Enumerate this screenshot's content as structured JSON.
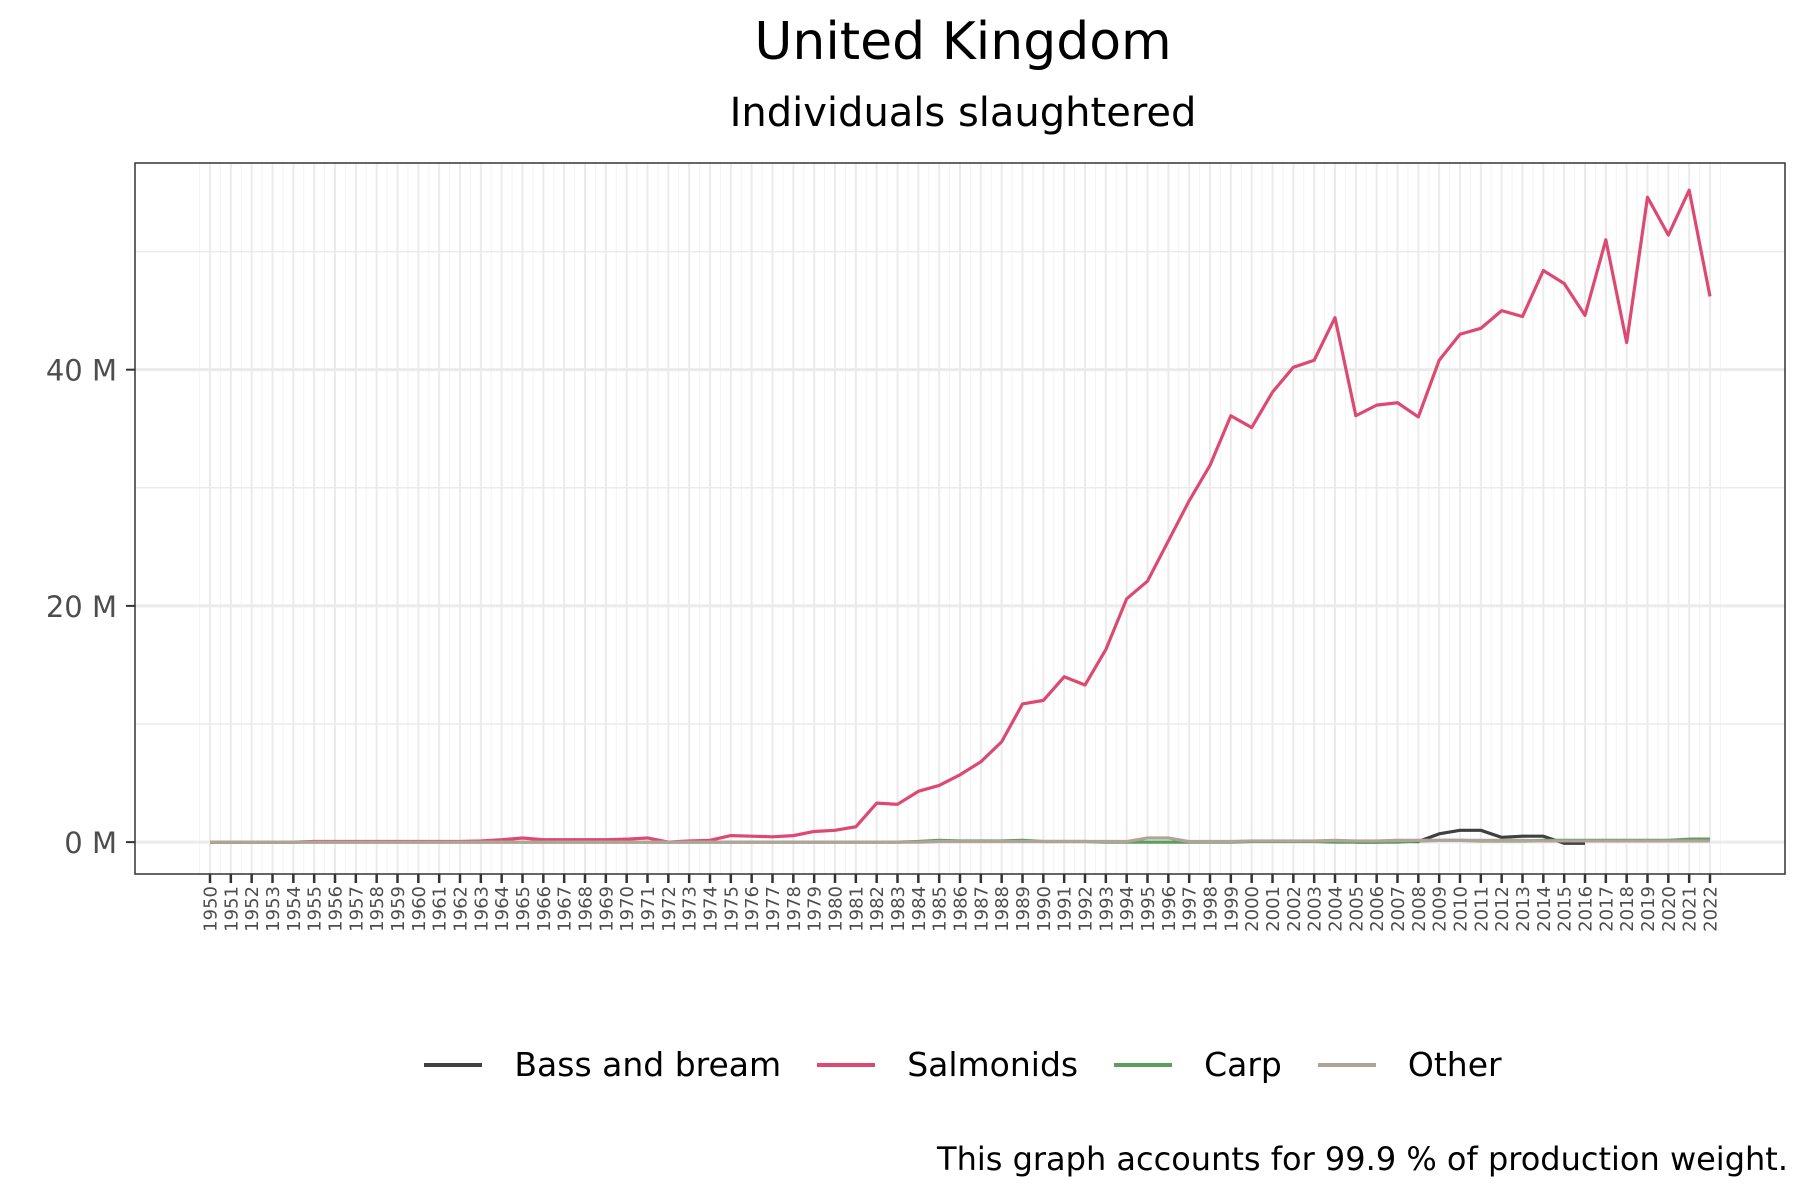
{
  "chart_data": {
    "type": "line",
    "title": "United Kingdom",
    "subtitle": "Individuals slaughtered",
    "caption": "This graph accounts for 99.9 % of production weight.",
    "xlabel": "",
    "ylabel": "",
    "ylim": [
      -2.7,
      57.5
    ],
    "y_ticks": [
      0,
      20,
      40
    ],
    "y_tick_labels": [
      "0 M",
      "20 M",
      "40 M"
    ],
    "grid": true,
    "legend_position": "bottom",
    "x": [
      1950,
      1951,
      1952,
      1953,
      1954,
      1955,
      1956,
      1957,
      1958,
      1959,
      1960,
      1961,
      1962,
      1963,
      1964,
      1965,
      1966,
      1967,
      1968,
      1969,
      1970,
      1971,
      1972,
      1973,
      1974,
      1975,
      1976,
      1977,
      1978,
      1979,
      1980,
      1981,
      1982,
      1983,
      1984,
      1985,
      1986,
      1987,
      1988,
      1989,
      1990,
      1991,
      1992,
      1993,
      1994,
      1995,
      1996,
      1997,
      1998,
      1999,
      2000,
      2001,
      2002,
      2003,
      2004,
      2005,
      2006,
      2007,
      2008,
      2009,
      2010,
      2011,
      2012,
      2013,
      2014,
      2015,
      2016,
      2017,
      2018,
      2019,
      2020,
      2021,
      2022
    ],
    "series": [
      {
        "name": "Bass and bream",
        "color": "#404040",
        "values": [
          null,
          null,
          null,
          null,
          null,
          null,
          null,
          null,
          null,
          null,
          null,
          null,
          null,
          null,
          null,
          null,
          null,
          null,
          null,
          null,
          null,
          null,
          null,
          null,
          null,
          null,
          null,
          null,
          null,
          null,
          null,
          null,
          null,
          null,
          null,
          null,
          null,
          null,
          null,
          null,
          null,
          null,
          null,
          null,
          null,
          null,
          null,
          null,
          null,
          null,
          null,
          null,
          null,
          null,
          null,
          0.0,
          0.0,
          0.05,
          0.05,
          0.7,
          1.0,
          1.0,
          0.4,
          0.5,
          0.5,
          -0.1,
          -0.1,
          null,
          null,
          null,
          null,
          null,
          null
        ]
      },
      {
        "name": "Salmonids",
        "color": "#DC4A72",
        "values": [
          0.0,
          0.0,
          0.0,
          0.0,
          0.0,
          0.05,
          0.05,
          0.05,
          0.05,
          0.05,
          0.05,
          0.05,
          0.05,
          0.1,
          0.2,
          0.35,
          0.2,
          0.2,
          0.2,
          0.2,
          0.25,
          0.35,
          0.0,
          0.1,
          0.15,
          0.55,
          0.5,
          0.45,
          0.55,
          0.9,
          1.0,
          1.3,
          3.3,
          3.2,
          4.3,
          4.8,
          5.7,
          6.8,
          8.5,
          11.7,
          12.0,
          14.0,
          13.3,
          16.3,
          20.6,
          22.1,
          25.5,
          28.9,
          31.9,
          36.1,
          35.1,
          38.1,
          40.2,
          40.8,
          44.4,
          36.1,
          37.0,
          37.2,
          36.0,
          40.8,
          43.0,
          43.5,
          45.0,
          44.5,
          48.4,
          47.3,
          44.6,
          51.0,
          42.3,
          54.6,
          51.4,
          55.2,
          46.2
        ]
      },
      {
        "name": "Carp",
        "color": "#5C9E5C",
        "values": [
          0.0,
          0.0,
          0.0,
          0.0,
          0.0,
          0.0,
          0.0,
          0.0,
          0.0,
          0.0,
          0.0,
          0.0,
          0.0,
          0.0,
          0.0,
          0.0,
          0.0,
          0.0,
          0.0,
          0.0,
          0.0,
          0.0,
          0.0,
          0.0,
          0.0,
          0.0,
          0.0,
          0.0,
          0.0,
          0.0,
          0.0,
          0.0,
          0.0,
          0.0,
          0.05,
          0.15,
          0.1,
          0.1,
          0.1,
          0.15,
          0.05,
          0.05,
          0.05,
          0.0,
          0.0,
          0.0,
          0.0,
          0.0,
          0.0,
          0.0,
          0.05,
          0.05,
          0.05,
          0.05,
          0.0,
          0.0,
          0.0,
          0.0,
          0.1,
          0.15,
          0.15,
          0.1,
          0.1,
          0.1,
          0.15,
          0.15,
          0.15,
          0.15,
          0.15,
          0.15,
          0.15,
          0.25,
          0.25
        ]
      },
      {
        "name": "Other",
        "color": "#B0A397",
        "values": [
          0.0,
          0.0,
          0.0,
          0.0,
          0.0,
          0.0,
          0.0,
          0.0,
          0.0,
          0.0,
          0.0,
          0.0,
          0.0,
          0.0,
          0.0,
          0.0,
          0.0,
          0.0,
          0.0,
          0.0,
          0.0,
          0.0,
          0.0,
          0.0,
          0.0,
          0.0,
          0.0,
          0.0,
          0.0,
          0.0,
          0.0,
          0.0,
          0.0,
          0.0,
          0.0,
          0.05,
          0.05,
          0.05,
          0.05,
          0.05,
          0.05,
          0.05,
          0.05,
          0.05,
          0.05,
          0.35,
          0.35,
          0.05,
          0.05,
          0.05,
          0.1,
          0.1,
          0.1,
          0.1,
          0.15,
          0.1,
          0.1,
          0.15,
          0.15,
          0.15,
          0.15,
          0.15,
          0.15,
          0.15,
          0.1,
          0.1,
          0.1,
          0.1,
          0.1,
          0.1,
          0.1,
          0.1,
          0.1
        ]
      }
    ]
  }
}
